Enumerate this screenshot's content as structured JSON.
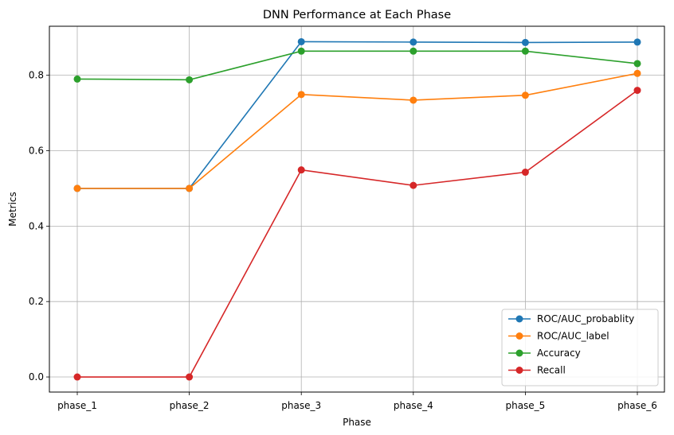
{
  "chart_data": {
    "type": "line",
    "title": "DNN Performance at Each Phase",
    "xlabel": "Phase",
    "ylabel": "Metrics",
    "categories": [
      "phase_1",
      "phase_2",
      "phase_3",
      "phase_4",
      "phase_5",
      "phase_6"
    ],
    "ylim": [
      -0.04,
      0.93
    ],
    "yticks": [
      0.0,
      0.2,
      0.4,
      0.6,
      0.8
    ],
    "ytick_labels": [
      "0.0",
      "0.2",
      "0.4",
      "0.6",
      "0.8"
    ],
    "grid": true,
    "legend_position": "lower-right",
    "series": [
      {
        "name": "ROC/AUC_probablity",
        "color": "#1f77b4",
        "values": [
          0.5,
          0.5,
          0.889,
          0.888,
          0.887,
          0.888
        ]
      },
      {
        "name": "ROC/AUC_label",
        "color": "#ff7f0e",
        "values": [
          0.5,
          0.5,
          0.749,
          0.734,
          0.747,
          0.805
        ]
      },
      {
        "name": "Accuracy",
        "color": "#2ca02c",
        "values": [
          0.79,
          0.788,
          0.864,
          0.864,
          0.864,
          0.831
        ]
      },
      {
        "name": "Recall",
        "color": "#d62728",
        "values": [
          0.0,
          0.0,
          0.549,
          0.508,
          0.543,
          0.76
        ]
      }
    ]
  }
}
